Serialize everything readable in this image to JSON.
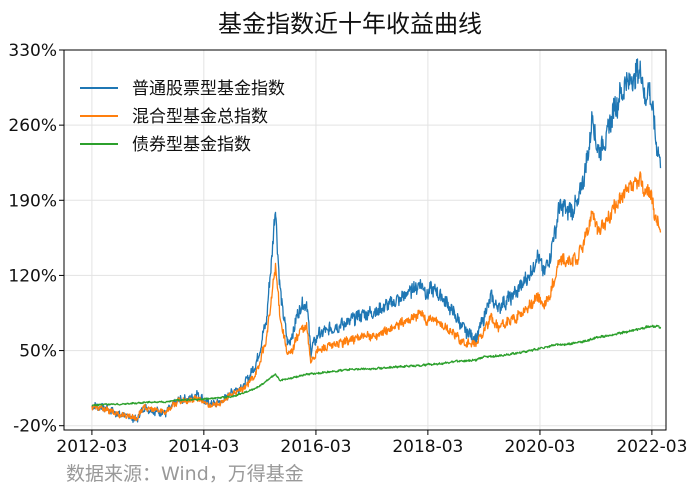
{
  "chart_data": {
    "type": "line",
    "title": "基金指数近十年收益曲线",
    "xlabel": "",
    "ylabel": "",
    "source_note": "数据来源：Wind，万得基金",
    "x_range": [
      "2011-09-01",
      "2022-06-01"
    ],
    "y_range": [
      -24,
      330
    ],
    "x_ticks": [
      "2012-03",
      "2014-03",
      "2016-03",
      "2018-03",
      "2020-03",
      "2022-03"
    ],
    "y_ticks": [
      -20,
      50,
      120,
      190,
      260,
      330
    ],
    "y_tick_labels": [
      "-20%",
      "50%",
      "120%",
      "190%",
      "260%",
      "330%"
    ],
    "grid": true,
    "legend_position": "top-left",
    "series": [
      {
        "name": "普通股票型基金指数",
        "color": "#1f77b4",
        "points": [
          [
            "2012-03-01",
            -1
          ],
          [
            "2012-06-01",
            -4
          ],
          [
            "2012-09-01",
            -10
          ],
          [
            "2012-11-15",
            -12
          ],
          [
            "2012-12-15",
            -15
          ],
          [
            "2013-02-01",
            -3
          ],
          [
            "2013-04-01",
            -6
          ],
          [
            "2013-06-25",
            -8
          ],
          [
            "2013-09-15",
            4
          ],
          [
            "2013-12-01",
            5
          ],
          [
            "2014-01-15",
            10
          ],
          [
            "2014-03-15",
            2
          ],
          [
            "2014-05-01",
            0
          ],
          [
            "2014-07-01",
            3
          ],
          [
            "2014-09-01",
            12
          ],
          [
            "2014-11-15",
            17
          ],
          [
            "2014-12-31",
            28
          ],
          [
            "2015-02-15",
            42
          ],
          [
            "2015-04-15",
            80
          ],
          [
            "2015-06-12",
            183
          ],
          [
            "2015-07-08",
            110
          ],
          [
            "2015-08-25",
            60
          ],
          [
            "2015-09-15",
            58
          ],
          [
            "2015-11-15",
            90
          ],
          [
            "2015-12-31",
            95
          ],
          [
            "2016-01-28",
            50
          ],
          [
            "2016-03-15",
            65
          ],
          [
            "2016-06-01",
            70
          ],
          [
            "2016-09-01",
            75
          ],
          [
            "2016-12-01",
            82
          ],
          [
            "2017-02-01",
            85
          ],
          [
            "2017-04-01",
            86
          ],
          [
            "2017-06-01",
            92
          ],
          [
            "2017-09-01",
            98
          ],
          [
            "2017-11-15",
            107
          ],
          [
            "2018-01-25",
            113
          ],
          [
            "2018-02-15",
            102
          ],
          [
            "2018-04-01",
            108
          ],
          [
            "2018-06-20",
            97
          ],
          [
            "2018-08-15",
            85
          ],
          [
            "2018-10-20",
            70
          ],
          [
            "2018-12-31",
            62
          ],
          [
            "2019-01-05",
            60
          ],
          [
            "2019-02-15",
            75
          ],
          [
            "2019-04-15",
            100
          ],
          [
            "2019-06-01",
            90
          ],
          [
            "2019-08-01",
            97
          ],
          [
            "2019-10-01",
            105
          ],
          [
            "2019-12-31",
            122
          ],
          [
            "2020-02-20",
            140
          ],
          [
            "2020-03-20",
            122
          ],
          [
            "2020-05-01",
            135
          ],
          [
            "2020-07-10",
            185
          ],
          [
            "2020-09-01",
            180
          ],
          [
            "2020-10-30",
            185
          ],
          [
            "2020-12-31",
            225
          ],
          [
            "2021-02-10",
            270
          ],
          [
            "2021-03-10",
            235
          ],
          [
            "2021-05-01",
            245
          ],
          [
            "2021-06-25",
            275
          ],
          [
            "2021-08-01",
            285
          ],
          [
            "2021-09-15",
            300
          ],
          [
            "2021-11-15",
            305
          ],
          [
            "2021-12-15",
            314
          ],
          [
            "2022-01-15",
            285
          ],
          [
            "2022-02-15",
            295
          ],
          [
            "2022-03-15",
            260
          ],
          [
            "2022-04-26",
            220
          ]
        ]
      },
      {
        "name": "混合型基金总指数",
        "color": "#ff7f0e",
        "points": [
          [
            "2012-03-01",
            -2
          ],
          [
            "2012-06-01",
            -5
          ],
          [
            "2012-09-01",
            -10
          ],
          [
            "2012-11-15",
            -11
          ],
          [
            "2012-12-15",
            -14
          ],
          [
            "2013-02-01",
            -3
          ],
          [
            "2013-04-01",
            -5
          ],
          [
            "2013-06-25",
            -7
          ],
          [
            "2013-09-15",
            3
          ],
          [
            "2013-12-01",
            3
          ],
          [
            "2014-01-15",
            6
          ],
          [
            "2014-03-15",
            0
          ],
          [
            "2014-05-01",
            -1
          ],
          [
            "2014-07-01",
            2
          ],
          [
            "2014-09-01",
            10
          ],
          [
            "2014-11-15",
            14
          ],
          [
            "2014-12-31",
            22
          ],
          [
            "2015-02-15",
            32
          ],
          [
            "2015-04-15",
            62
          ],
          [
            "2015-06-12",
            130
          ],
          [
            "2015-07-08",
            85
          ],
          [
            "2015-08-25",
            48
          ],
          [
            "2015-09-15",
            46
          ],
          [
            "2015-11-15",
            68
          ],
          [
            "2015-12-31",
            72
          ],
          [
            "2016-01-28",
            40
          ],
          [
            "2016-03-15",
            50
          ],
          [
            "2016-06-01",
            54
          ],
          [
            "2016-09-01",
            58
          ],
          [
            "2016-12-01",
            62
          ],
          [
            "2017-02-01",
            63
          ],
          [
            "2017-04-01",
            64
          ],
          [
            "2017-06-01",
            68
          ],
          [
            "2017-09-01",
            75
          ],
          [
            "2017-11-15",
            80
          ],
          [
            "2018-01-25",
            85
          ],
          [
            "2018-02-15",
            78
          ],
          [
            "2018-04-01",
            80
          ],
          [
            "2018-06-20",
            72
          ],
          [
            "2018-08-15",
            66
          ],
          [
            "2018-10-20",
            57
          ],
          [
            "2018-12-31",
            56
          ],
          [
            "2019-01-05",
            55
          ],
          [
            "2019-02-15",
            65
          ],
          [
            "2019-04-15",
            80
          ],
          [
            "2019-06-01",
            72
          ],
          [
            "2019-08-01",
            76
          ],
          [
            "2019-10-01",
            81
          ],
          [
            "2019-12-31",
            92
          ],
          [
            "2020-02-20",
            102
          ],
          [
            "2020-03-20",
            90
          ],
          [
            "2020-05-01",
            100
          ],
          [
            "2020-07-10",
            135
          ],
          [
            "2020-09-01",
            132
          ],
          [
            "2020-10-30",
            135
          ],
          [
            "2020-12-31",
            158
          ],
          [
            "2021-02-10",
            182
          ],
          [
            "2021-03-10",
            160
          ],
          [
            "2021-05-01",
            168
          ],
          [
            "2021-06-25",
            182
          ],
          [
            "2021-08-01",
            190
          ],
          [
            "2021-09-15",
            198
          ],
          [
            "2021-11-15",
            205
          ],
          [
            "2021-12-15",
            210
          ],
          [
            "2022-01-15",
            196
          ],
          [
            "2022-02-15",
            200
          ],
          [
            "2022-03-15",
            180
          ],
          [
            "2022-04-26",
            160
          ]
        ]
      },
      {
        "name": "债券型基金指数",
        "color": "#2ca02c",
        "points": [
          [
            "2012-03-01",
            -1
          ],
          [
            "2012-06-01",
            0
          ],
          [
            "2012-09-01",
            0
          ],
          [
            "2012-12-15",
            1
          ],
          [
            "2013-03-01",
            2
          ],
          [
            "2013-06-25",
            2
          ],
          [
            "2013-09-15",
            4
          ],
          [
            "2013-12-01",
            4
          ],
          [
            "2014-03-15",
            5
          ],
          [
            "2014-06-01",
            6
          ],
          [
            "2014-09-01",
            7
          ],
          [
            "2014-12-31",
            13
          ],
          [
            "2015-03-01",
            17
          ],
          [
            "2015-06-12",
            28
          ],
          [
            "2015-07-08",
            22
          ],
          [
            "2015-09-15",
            24
          ],
          [
            "2015-12-31",
            28
          ],
          [
            "2016-03-15",
            29
          ],
          [
            "2016-06-01",
            30
          ],
          [
            "2016-09-01",
            32
          ],
          [
            "2016-12-31",
            33
          ],
          [
            "2017-03-01",
            33
          ],
          [
            "2017-06-01",
            34
          ],
          [
            "2017-09-01",
            35
          ],
          [
            "2017-12-31",
            36
          ],
          [
            "2018-03-01",
            37
          ],
          [
            "2018-06-01",
            38
          ],
          [
            "2018-09-01",
            40
          ],
          [
            "2018-12-31",
            41
          ],
          [
            "2019-03-01",
            44
          ],
          [
            "2019-06-01",
            45
          ],
          [
            "2019-09-01",
            47
          ],
          [
            "2019-12-31",
            50
          ],
          [
            "2020-03-01",
            52
          ],
          [
            "2020-06-01",
            55
          ],
          [
            "2020-09-01",
            56
          ],
          [
            "2020-12-31",
            59
          ],
          [
            "2021-03-01",
            62
          ],
          [
            "2021-06-01",
            64
          ],
          [
            "2021-09-01",
            67
          ],
          [
            "2021-12-31",
            71
          ],
          [
            "2022-03-01",
            73
          ],
          [
            "2022-04-26",
            72
          ]
        ]
      }
    ]
  }
}
